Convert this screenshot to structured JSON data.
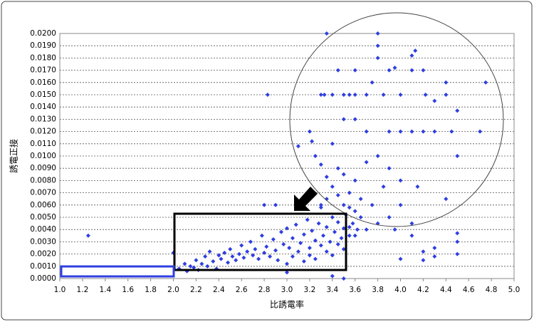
{
  "chart_data": {
    "type": "scatter",
    "x_label": "比誘電率",
    "y_label": "誘電正接",
    "xlim": [
      1.0,
      5.0
    ],
    "ylim": [
      0,
      0.02
    ],
    "grid": true,
    "xticks": [
      {
        "value": 1.0,
        "label": "1.0"
      },
      {
        "value": 1.2,
        "label": "1.2"
      },
      {
        "value": 1.4,
        "label": "1.4"
      },
      {
        "value": 1.6,
        "label": "1.6"
      },
      {
        "value": 1.8,
        "label": "1.8"
      },
      {
        "value": 2.0,
        "label": "2.0"
      },
      {
        "value": 2.2,
        "label": "2.2"
      },
      {
        "value": 2.4,
        "label": "2.4"
      },
      {
        "value": 2.6,
        "label": "2.6"
      },
      {
        "value": 2.8,
        "label": "2.8"
      },
      {
        "value": 3.0,
        "label": "3.0"
      },
      {
        "value": 3.2,
        "label": "3.2"
      },
      {
        "value": 3.4,
        "label": "3.4"
      },
      {
        "value": 3.6,
        "label": "3.6"
      },
      {
        "value": 3.8,
        "label": "3.8"
      },
      {
        "value": 4.0,
        "label": "4.0"
      },
      {
        "value": 4.2,
        "label": "4.2"
      },
      {
        "value": 4.4,
        "label": "4.4"
      },
      {
        "value": 4.6,
        "label": "4.6"
      },
      {
        "value": 4.8,
        "label": "4.8"
      },
      {
        "value": 5.0,
        "label": "5.0"
      }
    ],
    "yticks": [
      {
        "value": 0,
        "label": "0.0000"
      },
      {
        "value": 0.001,
        "label": "0.0010"
      },
      {
        "value": 0.002,
        "label": "0.0020"
      },
      {
        "value": 0.003,
        "label": "0.0030"
      },
      {
        "value": 0.004,
        "label": "0.0040"
      },
      {
        "value": 0.005,
        "label": "0.0050"
      },
      {
        "value": 0.006,
        "label": "0.0060"
      },
      {
        "value": 0.007,
        "label": "0.0070"
      },
      {
        "value": 0.008,
        "label": "0.0080"
      },
      {
        "value": 0.009,
        "label": "0.0090"
      },
      {
        "value": 0.01,
        "label": "0.0100"
      },
      {
        "value": 0.011,
        "label": "0.0110"
      },
      {
        "value": 0.012,
        "label": "0.0120"
      },
      {
        "value": 0.013,
        "label": "0.0130"
      },
      {
        "value": 0.014,
        "label": "0.0140"
      },
      {
        "value": 0.015,
        "label": "0.0150"
      },
      {
        "value": 0.016,
        "label": "0.0160"
      },
      {
        "value": 0.017,
        "label": "0.0170"
      },
      {
        "value": 0.018,
        "label": "0.0180"
      },
      {
        "value": 0.019,
        "label": "0.0190"
      },
      {
        "value": 0.02,
        "label": "0.0200"
      }
    ],
    "series": [
      {
        "color": "#2f3fe0",
        "x": [
          1.25,
          2.0,
          2.83,
          2.8,
          2.9,
          3.1,
          3.2,
          3.22,
          3.25,
          3.3,
          3.35,
          3.33,
          3.4,
          3.45,
          3.5,
          3.55,
          3.6,
          3.6,
          3.7,
          3.75,
          3.8,
          3.8,
          3.8,
          3.85,
          3.9,
          3.95,
          4.0,
          4.1,
          4.1,
          4.13,
          4.2,
          4.22,
          4.3,
          4.4,
          4.4,
          4.5,
          4.5,
          4.45,
          4.7,
          4.75,
          4.3,
          4.2,
          4.1,
          4.0,
          3.9,
          3.7,
          3.6,
          3.5,
          3.4,
          3.45,
          3.5,
          3.6,
          3.7,
          3.8,
          3.9,
          4.0,
          4.15,
          4.4,
          3.55,
          3.65,
          3.75,
          3.85,
          4.0,
          4.1,
          4.1,
          4.2,
          4.2,
          4.3,
          4.3,
          4.5,
          4.5,
          4.5,
          4.0,
          3.95,
          3.9,
          3.8,
          3.7,
          3.6,
          3.55,
          2.05,
          2.1,
          2.12,
          2.15,
          2.18,
          2.2,
          2.22,
          2.25,
          2.28,
          2.3,
          2.32,
          2.35,
          2.38,
          2.4,
          2.42,
          2.45,
          2.48,
          2.5,
          2.52,
          2.55,
          2.58,
          2.6,
          2.62,
          2.65,
          2.68,
          2.7,
          2.72,
          2.75,
          2.78,
          2.8,
          2.82,
          2.85,
          2.88,
          2.9,
          2.92,
          2.95,
          2.97,
          3.0,
          3.0,
          3.0,
          3.02,
          3.05,
          3.05,
          3.08,
          3.1,
          3.12,
          3.15,
          3.15,
          3.18,
          3.2,
          3.2,
          3.22,
          3.25,
          3.25,
          3.28,
          3.3,
          3.3,
          3.32,
          3.35,
          3.35,
          3.38,
          3.4,
          3.4,
          3.42,
          3.45,
          3.45,
          3.48,
          3.5,
          3.5,
          3.52,
          3.55,
          3.58,
          3.6,
          3.62,
          3.65,
          3.3,
          3.35,
          3.4,
          3.45,
          3.5,
          3.55,
          3.4,
          3.5,
          3.3,
          3.35
        ],
        "values": [
          0.0035,
          0.0021,
          0.015,
          0.006,
          0.006,
          0.0108,
          0.012,
          0.0112,
          0.01,
          0.015,
          0.02,
          0.015,
          0.015,
          0.017,
          0.015,
          0.015,
          0.015,
          0.017,
          0.015,
          0.016,
          0.02,
          0.019,
          0.018,
          0.015,
          0.017,
          0.0172,
          0.015,
          0.017,
          0.0182,
          0.0186,
          0.017,
          0.015,
          0.0145,
          0.016,
          0.015,
          0.0137,
          0.01,
          0.012,
          0.012,
          0.016,
          0.012,
          0.012,
          0.012,
          0.012,
          0.012,
          0.012,
          0.013,
          0.013,
          0.011,
          0.009,
          0.0085,
          0.008,
          0.0095,
          0.01,
          0.009,
          0.008,
          0.0075,
          0.0065,
          0.007,
          0.0065,
          0.006,
          0.0075,
          0.006,
          0.0045,
          0.0035,
          0.0022,
          0.0015,
          0.0025,
          0.0018,
          0.0037,
          0.003,
          0.002,
          0.0016,
          0.004,
          0.005,
          0.0045,
          0.004,
          0.0035,
          0.0042,
          0.0008,
          0.0012,
          0.0006,
          0.001,
          0.0009,
          0.0015,
          0.0007,
          0.0012,
          0.0018,
          0.001,
          0.0022,
          0.0014,
          0.0008,
          0.0019,
          0.0016,
          0.0021,
          0.0013,
          0.0024,
          0.0018,
          0.0015,
          0.002,
          0.0027,
          0.0017,
          0.0022,
          0.003,
          0.0019,
          0.0024,
          0.0016,
          0.0035,
          0.0021,
          0.0026,
          0.0018,
          0.0032,
          0.0023,
          0.0015,
          0.0038,
          0.0028,
          0.0041,
          0.0012,
          0.0005,
          0.0025,
          0.0033,
          0.0018,
          0.0044,
          0.0022,
          0.0029,
          0.0036,
          0.0014,
          0.0048,
          0.0025,
          0.0019,
          0.0039,
          0.0031,
          0.0016,
          0.0045,
          0.0027,
          0.0058,
          0.0035,
          0.0022,
          0.0042,
          0.003,
          0.005,
          0.0019,
          0.0038,
          0.0028,
          0.0046,
          0.0033,
          0.0041,
          0.0024,
          0.0052,
          0.0035,
          0.0045,
          0.0055,
          0.004,
          0.005,
          0.006,
          0.0065,
          0.0075,
          0.0068,
          0.006,
          0.0058,
          0.0002,
          0,
          0.0093,
          0.0083
        ]
      }
    ]
  }
}
